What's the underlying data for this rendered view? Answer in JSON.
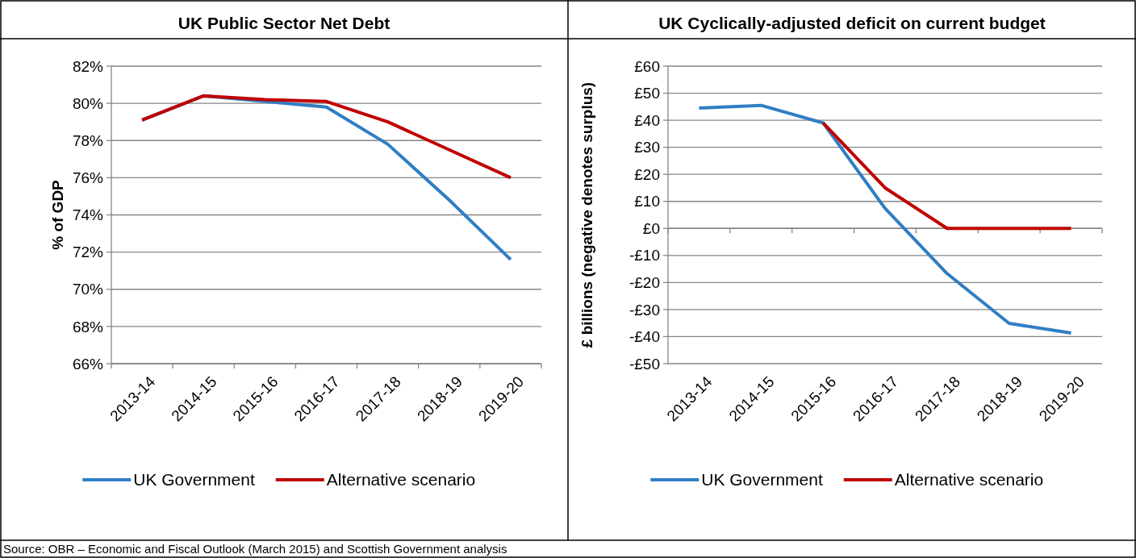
{
  "chart_data": [
    {
      "type": "line",
      "title": "UK Public Sector Net Debt",
      "ylabel": "% of GDP",
      "categories": [
        "2013-14",
        "2014-15",
        "2015-16",
        "2016-17",
        "2017-18",
        "2018-19",
        "2019-20"
      ],
      "series": [
        {
          "name": "UK Government",
          "color": "#2f7ec3",
          "values": [
            79.1,
            80.4,
            80.1,
            79.8,
            77.8,
            74.8,
            71.6
          ]
        },
        {
          "name": "Alternative scenario",
          "color": "#c00000",
          "values": [
            79.1,
            80.4,
            80.2,
            80.1,
            79.0,
            77.5,
            76.0
          ]
        }
      ],
      "ylim": [
        66,
        82
      ],
      "yticks": [
        {
          "value": 66,
          "label": "66%"
        },
        {
          "value": 68,
          "label": "68%"
        },
        {
          "value": 70,
          "label": "70%"
        },
        {
          "value": 72,
          "label": "72%"
        },
        {
          "value": 74,
          "label": "74%"
        },
        {
          "value": 76,
          "label": "76%"
        },
        {
          "value": 78,
          "label": "78%"
        },
        {
          "value": 80,
          "label": "80%"
        },
        {
          "value": 82,
          "label": "82%"
        }
      ],
      "grid": "y",
      "legend": "bottom",
      "line_style": "solid",
      "annotations": [
        "Source: OBR – Economic and Fiscal Outlook (March 2015) and Scottish Government analysis"
      ]
    },
    {
      "type": "line",
      "title": "UK Cyclically-adjusted deficit on current budget",
      "ylabel": "£ billions (negative denotes surplus)",
      "categories": [
        "2013-14",
        "2014-15",
        "2015-16",
        "2016-17",
        "2017-18",
        "2018-19",
        "2019-20"
      ],
      "series": [
        {
          "name": "UK Government",
          "color": "#2f7ec3",
          "values": [
            44.5,
            45.5,
            39,
            7.4,
            -16.7,
            -35.1,
            -38.7
          ]
        },
        {
          "name": "Alternative scenario",
          "color": "#c00000",
          "values": [
            null,
            null,
            39,
            15,
            0,
            0,
            0
          ]
        }
      ],
      "ylim": [
        -50,
        60
      ],
      "yticks": [
        {
          "value": -50,
          "label": "-£50"
        },
        {
          "value": -40,
          "label": "-£40"
        },
        {
          "value": -30,
          "label": "-£30"
        },
        {
          "value": -20,
          "label": "-£20"
        },
        {
          "value": -10,
          "label": "-£10"
        },
        {
          "value": 0,
          "label": "£0"
        },
        {
          "value": 10,
          "label": "£10"
        },
        {
          "value": 20,
          "label": "£20"
        },
        {
          "value": 30,
          "label": "£30"
        },
        {
          "value": 40,
          "label": "£40"
        },
        {
          "value": 50,
          "label": "£50"
        },
        {
          "value": 60,
          "label": "£60"
        }
      ],
      "grid": "y",
      "legend": "bottom",
      "line_style": "solid"
    }
  ]
}
